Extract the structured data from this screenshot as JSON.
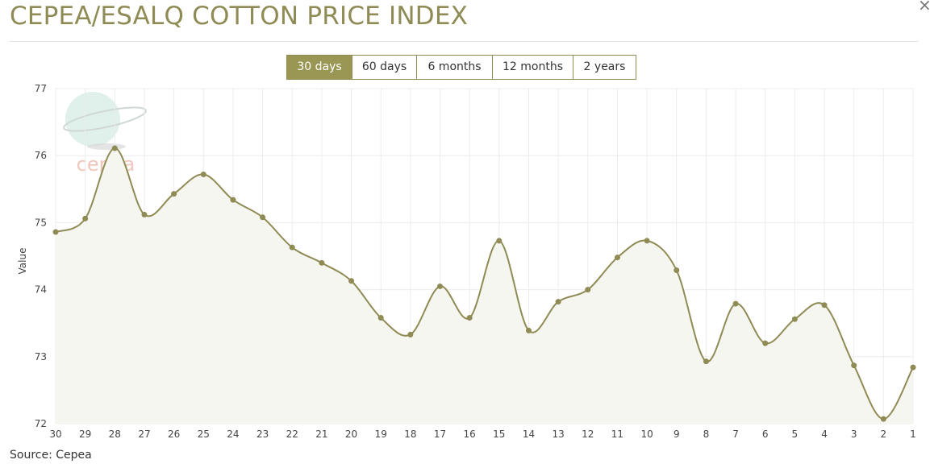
{
  "header": {
    "title": "CEPEA/ESALQ COTTON PRICE INDEX",
    "close_symbol": "×"
  },
  "ranges": {
    "items": [
      {
        "label": "30 days",
        "active": true
      },
      {
        "label": "60 days",
        "active": false
      },
      {
        "label": "6 months",
        "active": false
      },
      {
        "label": "12 months",
        "active": false
      },
      {
        "label": "2 years",
        "active": false
      }
    ]
  },
  "watermark": {
    "text": "cepea"
  },
  "chart_data": {
    "type": "line",
    "title": "",
    "xlabel": "",
    "ylabel": "Value",
    "ylim": [
      72,
      77
    ],
    "yticks": [
      72,
      73,
      74,
      75,
      76,
      77
    ],
    "grid": true,
    "fill_area": true,
    "categories": [
      "30",
      "29",
      "28",
      "27",
      "26",
      "25",
      "24",
      "23",
      "22",
      "21",
      "20",
      "19",
      "18",
      "17",
      "16",
      "15",
      "14",
      "13",
      "12",
      "11",
      "10",
      "9",
      "8",
      "7",
      "6",
      "5",
      "4",
      "3",
      "2",
      "1"
    ],
    "series": [
      {
        "values": [
          74.86,
          75.06,
          76.11,
          75.12,
          75.43,
          75.72,
          75.34,
          75.08,
          74.63,
          74.4,
          74.13,
          73.58,
          73.33,
          74.05,
          73.58,
          74.73,
          73.39,
          73.82,
          74.0,
          74.48,
          74.73,
          74.29,
          72.93,
          73.79,
          73.2,
          73.56,
          73.77,
          72.87,
          72.07,
          72.84
        ]
      }
    ],
    "colors": {
      "line": "#8f8b55",
      "fill": "#f6f6f0",
      "grid": "#ececec"
    }
  },
  "footer": {
    "source": "Source: Cepea"
  }
}
